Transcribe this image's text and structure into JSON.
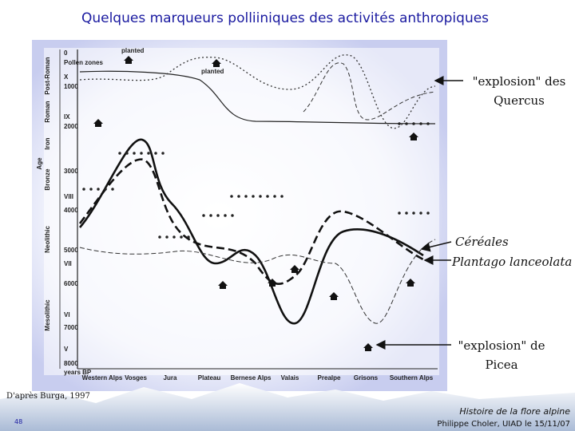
{
  "title": "Quelques marqueurs polliiniques des activités anthropiques",
  "figure": {
    "y_labels": [
      "0",
      "Pollen zones",
      "X",
      "1000",
      "IX",
      "2000",
      "3000",
      "VIII",
      "4000",
      "5000",
      "VII",
      "6000",
      "VI",
      "7000",
      "V",
      "8000",
      "years BP"
    ],
    "periods": [
      "Post-Roman",
      "Roman",
      "Iron",
      "Age",
      "Bronze",
      "Neolithic",
      "Mesolithic"
    ],
    "regions": [
      "Western Alps",
      "Vosges",
      "Jura",
      "Plateau",
      "Bernese Alps",
      "Valais",
      "Prealpe",
      "Grisons",
      "Southern Alps"
    ],
    "planted": [
      "planted",
      "planted"
    ]
  },
  "annotations": {
    "quercus": [
      "\"explosion\" des",
      "Quercus"
    ],
    "cereales": "Céréales",
    "plantago": "Plantago lanceolata",
    "picea": [
      "\"explosion\" de",
      "Picea"
    ]
  },
  "source": "D'après Burga, 1997",
  "footer": {
    "line1": "Histoire de la flore alpine",
    "line2": "Philippe Choler, UIAD le 15/11/07"
  },
  "slide_number": "48"
}
